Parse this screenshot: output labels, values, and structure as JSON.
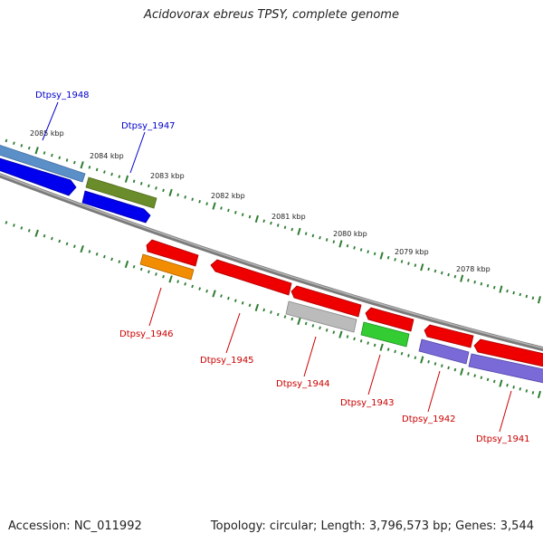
{
  "title": "Acidovorax ebreus TPSY, complete genome",
  "footer": {
    "accession": "Accession: NC_011992",
    "summary": "Topology: circular; Length: 3,796,573 bp; Genes: 3,544"
  },
  "ruler": {
    "ticks": [
      {
        "label": "2085 kbp"
      },
      {
        "label": "2084 kbp"
      },
      {
        "label": "2083 kbp"
      },
      {
        "label": "2082 kbp"
      },
      {
        "label": "2081 kbp"
      },
      {
        "label": "2080 kbp"
      },
      {
        "label": "2079 kbp"
      },
      {
        "label": "2078 kbp"
      }
    ]
  },
  "genes": [
    {
      "id": "dtpsy-1948",
      "label": "Dtpsy_1948",
      "strand": "plus",
      "color": "#5b8fc8",
      "labelColor": "#0000cc"
    },
    {
      "id": "dtpsy-1947",
      "label": "Dtpsy_1947",
      "strand": "plus",
      "color": "#6b8c2a",
      "labelColor": "#0000cc"
    },
    {
      "id": "dtpsy-1946",
      "label": "Dtpsy_1946",
      "strand": "minus",
      "color": "#f28c00",
      "labelColor": "#cc0000"
    },
    {
      "id": "dtpsy-1945",
      "label": "Dtpsy_1945",
      "strand": "minus",
      "color": "#ee0000",
      "labelColor": "#cc0000"
    },
    {
      "id": "dtpsy-1944",
      "label": "Dtpsy_1944",
      "strand": "minus",
      "color": "#bbbbbb",
      "labelColor": "#cc0000"
    },
    {
      "id": "dtpsy-1943",
      "label": "Dtpsy_1943",
      "strand": "minus",
      "color": "#33cc33",
      "labelColor": "#cc0000"
    },
    {
      "id": "dtpsy-1942",
      "label": "Dtpsy_1942",
      "strand": "minus",
      "color": "#7a6ad8",
      "labelColor": "#cc0000"
    },
    {
      "id": "dtpsy-1941",
      "label": "Dtpsy_1941",
      "strand": "minus",
      "color": "#7a6ad8",
      "labelColor": "#cc0000"
    }
  ],
  "colors": {
    "backbone": "#808080",
    "ruler_tick": "#2e7d32",
    "plus_label": "#0000cc",
    "minus_label": "#cc0000",
    "cds_plus": "#0000ee",
    "cds_minus": "#ee0000"
  }
}
